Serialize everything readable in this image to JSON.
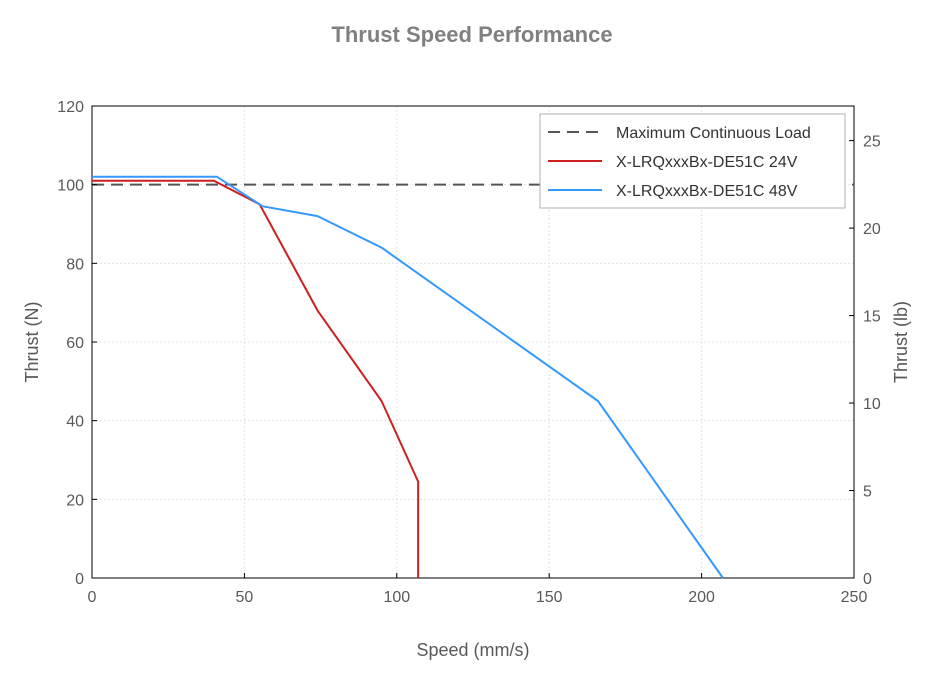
{
  "chart_data": {
    "type": "line",
    "title": "Thrust Speed Performance",
    "xlabel": "Speed (mm/s)",
    "ylabel": "Thrust (N)",
    "y2label": "Thrust (lb)",
    "xlim": [
      0,
      250
    ],
    "ylim": [
      0,
      120
    ],
    "y2lim": [
      0,
      26.98
    ],
    "xticks": [
      0,
      50,
      100,
      150,
      200,
      250
    ],
    "yticks": [
      0,
      20,
      40,
      60,
      80,
      100,
      120
    ],
    "y2ticks": [
      0,
      5,
      10,
      15,
      20,
      25
    ],
    "grid": true,
    "legend_position": "top-right",
    "series": [
      {
        "name": "Maximum Continuous Load",
        "style": "dashed",
        "color": "#555555",
        "x": [
          0,
          250
        ],
        "y": [
          100,
          100
        ]
      },
      {
        "name": "X-LRQxxxBx-DE51C 24V",
        "style": "solid",
        "color": "#cc1f1f",
        "x": [
          0,
          40,
          55,
          74,
          95,
          107,
          107
        ],
        "y": [
          101,
          101,
          95,
          68,
          45,
          24.5,
          0
        ]
      },
      {
        "name": "X-LRQxxxBx-DE51C 48V",
        "style": "solid",
        "color": "#3399ff",
        "x": [
          0,
          41,
          56,
          74,
          95,
          166,
          207
        ],
        "y": [
          102,
          102,
          94.5,
          92,
          84,
          45,
          0
        ]
      }
    ]
  }
}
